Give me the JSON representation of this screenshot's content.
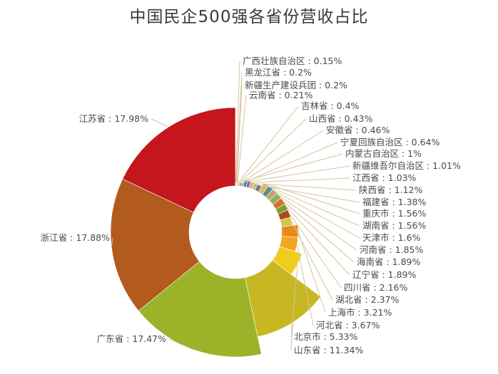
{
  "chart_data": {
    "type": "pie",
    "title": "中国民企500强各省份营收占比",
    "slices": [
      {
        "label": "江苏省",
        "value": 17.98,
        "display": "江苏省 : 17.98%",
        "color": "#c4161c"
      },
      {
        "label": "浙江省",
        "value": 17.88,
        "display": "浙江省 : 17.88%",
        "color": "#b35a1f"
      },
      {
        "label": "广东省",
        "value": 17.47,
        "display": "广东省 : 17.47%",
        "color": "#9cb229"
      },
      {
        "label": "山东省",
        "value": 11.34,
        "display": "山东省 : 11.34%",
        "color": "#c7b823"
      },
      {
        "label": "北京市",
        "value": 5.33,
        "display": "北京市 : 5.33%",
        "color": "#f0cd1c"
      },
      {
        "label": "河北省",
        "value": 3.67,
        "display": "河北省 : 3.67%",
        "color": "#f4a621"
      },
      {
        "label": "上海市",
        "value": 3.21,
        "display": "上海市 : 3.21%",
        "color": "#e68b16"
      },
      {
        "label": "湖北省",
        "value": 2.37,
        "display": "湖北省 : 2.37%",
        "color": "#d7c14a"
      },
      {
        "label": "四川省",
        "value": 2.16,
        "display": "四川省 : 2.16%",
        "color": "#a84a1d"
      },
      {
        "label": "辽宁省",
        "value": 1.89,
        "display": "辽宁省 : 1.89%",
        "color": "#7f9f34"
      },
      {
        "label": "海南省",
        "value": 1.89,
        "display": "海南省 : 1.89%",
        "color": "#d66f2e"
      },
      {
        "label": "河南省",
        "value": 1.85,
        "display": "河南省 : 1.85%",
        "color": "#8fae60"
      },
      {
        "label": "天津市",
        "value": 1.6,
        "display": "天津市 : 1.6%",
        "color": "#c2a16f"
      },
      {
        "label": "湖南省",
        "value": 1.56,
        "display": "湖南省 : 1.56%",
        "color": "#5c8a8e"
      },
      {
        "label": "重庆市",
        "value": 1.56,
        "display": "重庆市 : 1.56%",
        "color": "#e0b26a"
      },
      {
        "label": "福建省",
        "value": 1.38,
        "display": "福建省 : 1.38%",
        "color": "#6e7c86"
      },
      {
        "label": "陕西省",
        "value": 1.12,
        "display": "陕西省 : 1.12%",
        "color": "#b9c46a"
      },
      {
        "label": "江西省",
        "value": 1.03,
        "display": "江西省 : 1.03%",
        "color": "#e8a08a"
      },
      {
        "label": "新疆维吾尔自治区",
        "value": 1.01,
        "display": "新疆维吾尔自治区 : 1.01%",
        "color": "#8c6fa8"
      },
      {
        "label": "内蒙古自治区",
        "value": 1,
        "display": "内蒙古自治区 : 1%",
        "color": "#4f83b8"
      },
      {
        "label": "宁夏回族自治区",
        "value": 0.64,
        "display": "宁夏回族自治区 : 0.64%",
        "color": "#78b7c9"
      },
      {
        "label": "安徽省",
        "value": 0.46,
        "display": "安徽省 : 0.46%",
        "color": "#c44f6a"
      },
      {
        "label": "山西省",
        "value": 0.43,
        "display": "山西省 : 0.43%",
        "color": "#9fbf8f"
      },
      {
        "label": "吉林省",
        "value": 0.4,
        "display": "吉林省 : 0.4%",
        "color": "#d9915b"
      },
      {
        "label": "云南省",
        "value": 0.21,
        "display": "云南省 : 0.21%",
        "color": "#a3a3a3"
      },
      {
        "label": "新疆生产建设兵团",
        "value": 0.2,
        "display": "新疆生产建设兵团 : 0.2%",
        "color": "#7a9cc6"
      },
      {
        "label": "黑龙江省",
        "value": 0.2,
        "display": "黑龙江省 : 0.2%",
        "color": "#b7c9a1"
      },
      {
        "label": "广西壮族自治区",
        "value": 0.15,
        "display": "广西壮族自治区 : 0.15%",
        "color": "#e7c36f"
      }
    ],
    "colors": {
      "leader_line": "#d4c49a",
      "hole": "#ffffff",
      "text": "#4a4a4a"
    }
  }
}
